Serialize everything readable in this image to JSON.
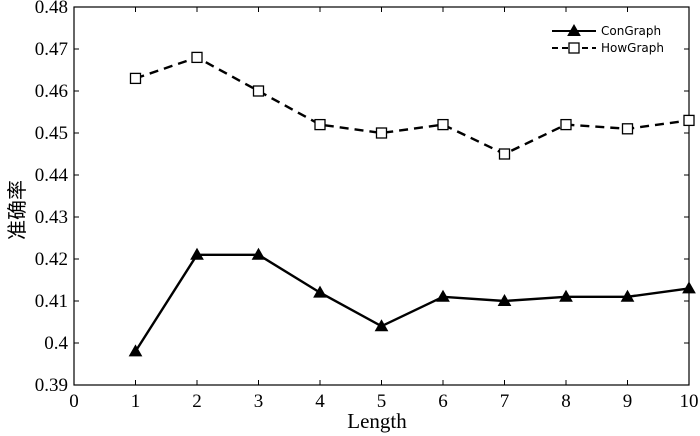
{
  "chart_data": {
    "type": "line",
    "xlabel": "Length",
    "ylabel": "准确率",
    "xlim": [
      0,
      10
    ],
    "ylim": [
      0.39,
      0.48
    ],
    "x_ticks": [
      "0",
      "1",
      "2",
      "3",
      "4",
      "5",
      "6",
      "7",
      "8",
      "9",
      "10"
    ],
    "y_ticks": [
      "0.39",
      "0.4",
      "0.41",
      "0.42",
      "0.43",
      "0.44",
      "0.45",
      "0.46",
      "0.47",
      "0.48"
    ],
    "grid": false,
    "legend_position": "top-right",
    "x": [
      1,
      2,
      3,
      4,
      5,
      6,
      7,
      8,
      9,
      10
    ],
    "series": [
      {
        "name": "ConGraph",
        "style": "solid",
        "marker": "filled-triangle",
        "values": [
          0.398,
          0.421,
          0.421,
          0.412,
          0.404,
          0.411,
          0.41,
          0.411,
          0.411,
          0.413
        ]
      },
      {
        "name": "HowGraph",
        "style": "dashed",
        "marker": "open-square",
        "values": [
          0.463,
          0.468,
          0.46,
          0.452,
          0.45,
          0.452,
          0.445,
          0.452,
          0.451,
          0.453
        ]
      }
    ],
    "colors": {
      "line": "#000000",
      "background": "#ffffff"
    }
  }
}
